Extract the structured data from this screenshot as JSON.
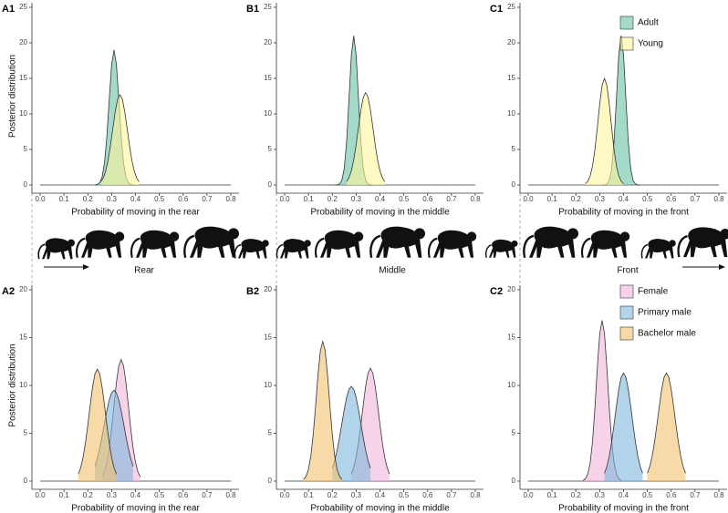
{
  "chart_data": [
    {
      "type": "density",
      "title": "A1",
      "xlabel": "Probability of moving in the rear",
      "ylabel": "Posterior distribution",
      "xlim": [
        0,
        0.8
      ],
      "xticks": [
        {
          "value": 0,
          "label": "0.0"
        },
        0.1,
        0.2,
        0.3,
        0.4,
        0.5,
        0.6,
        0.7,
        0.8
      ],
      "ylim": [
        0,
        25
      ],
      "yticks": [
        0,
        5,
        10,
        15,
        20,
        25
      ],
      "series": [
        {
          "name": "Adult",
          "color": "#66c2a5",
          "x": [
            0.23,
            0.24,
            0.25,
            0.26,
            0.27,
            0.28,
            0.29,
            0.3,
            0.31,
            0.32,
            0.33,
            0.34,
            0.35,
            0.36,
            0.37,
            0.38,
            0.39
          ],
          "values": [
            0.01,
            0.08,
            0.32,
            1.12,
            3.1,
            6.84,
            12.07,
            16.97,
            19,
            16.97,
            12.07,
            6.84,
            3.1,
            1.12,
            0.32,
            0.08,
            0.01
          ]
        },
        {
          "name": "Young",
          "color": "#fff59d",
          "x": [
            0.255,
            0.265,
            0.275,
            0.285,
            0.295,
            0.305,
            0.315,
            0.325,
            0.335,
            0.345,
            0.355,
            0.365,
            0.375,
            0.385,
            0.395,
            0.405,
            0.415
          ],
          "values": [
            0.46,
            0.99,
            1.96,
            3.45,
            5.52,
            7.95,
            10.31,
            12.05,
            12.7,
            12.05,
            10.31,
            7.95,
            5.52,
            3.45,
            1.96,
            0.99,
            0.46
          ]
        }
      ]
    },
    {
      "type": "density",
      "title": "B1",
      "xlabel": "Probability of moving in the middle",
      "xlim": [
        0,
        0.8
      ],
      "xticks": [
        {
          "value": 0,
          "label": "0.0"
        },
        0.1,
        0.2,
        0.3,
        0.4,
        0.5,
        0.6,
        0.7,
        0.8
      ],
      "ylim": [
        0,
        25
      ],
      "yticks": [
        0,
        5,
        10,
        15,
        20,
        25
      ],
      "series": [
        {
          "name": "Adult",
          "color": "#66c2a5",
          "x": [
            0.21,
            0.22,
            0.23,
            0.24,
            0.25,
            0.26,
            0.27,
            0.28,
            0.29,
            0.3,
            0.31,
            0.32,
            0.33,
            0.34,
            0.35,
            0.36,
            0.37
          ],
          "values": [
            0,
            0.02,
            0.14,
            0.65,
            2.29,
            6.03,
            12.08,
            18.29,
            21,
            18.29,
            12.08,
            6.03,
            2.29,
            0.65,
            0.14,
            0.02,
            0
          ]
        },
        {
          "name": "Young",
          "color": "#fff59d",
          "x": [
            0.26,
            0.27,
            0.28,
            0.29,
            0.3,
            0.31,
            0.32,
            0.33,
            0.34,
            0.35,
            0.36,
            0.37,
            0.38,
            0.39,
            0.4,
            0.41,
            0.42
          ],
          "values": [
            0.47,
            1.01,
            2,
            3.54,
            5.66,
            8.14,
            10.56,
            12.34,
            13,
            12.34,
            10.56,
            8.14,
            5.66,
            3.54,
            2,
            1.01,
            0.47
          ]
        }
      ]
    },
    {
      "type": "density",
      "title": "C1",
      "xlabel": "Probability of moving in the front",
      "legend": "top-right",
      "xlim": [
        0,
        0.8
      ],
      "xticks": [
        {
          "value": 0,
          "label": "0.0"
        },
        0.1,
        0.2,
        0.3,
        0.4,
        0.5,
        0.6,
        0.7,
        0.8
      ],
      "ylim": [
        0,
        25
      ],
      "yticks": [
        0,
        5,
        10,
        15,
        20,
        25
      ],
      "series": [
        {
          "name": "Adult",
          "color": "#66c2a5",
          "x": [
            0.31,
            0.32,
            0.33,
            0.34,
            0.35,
            0.36,
            0.37,
            0.38,
            0.39,
            0.4,
            0.41,
            0.42,
            0.43,
            0.44,
            0.45,
            0.46,
            0.47
          ],
          "values": [
            0,
            0.02,
            0.14,
            0.65,
            2.29,
            6.03,
            12.08,
            18.29,
            21,
            18.29,
            12.08,
            6.03,
            2.29,
            0.65,
            0.14,
            0.02,
            0
          ]
        },
        {
          "name": "Young",
          "color": "#fff59d",
          "x": [
            0.24,
            0.25,
            0.26,
            0.27,
            0.28,
            0.29,
            0.3,
            0.31,
            0.32,
            0.33,
            0.34,
            0.35,
            0.36,
            0.37,
            0.38,
            0.39,
            0.4
          ],
          "values": [
            0.18,
            0.53,
            1.28,
            2.7,
            5.01,
            8.09,
            11.4,
            14.01,
            15,
            14.01,
            11.4,
            8.09,
            5.01,
            2.7,
            1.28,
            0.53,
            0.18
          ]
        }
      ]
    },
    {
      "type": "density",
      "title": "A2",
      "xlabel": "Probability of moving in the rear",
      "ylabel": "Posterior distribution",
      "xlim": [
        0,
        0.8
      ],
      "xticks": [
        {
          "value": 0,
          "label": "0.0"
        },
        0.1,
        0.2,
        0.3,
        0.4,
        0.5,
        0.6,
        0.7,
        0.8
      ],
      "ylim": [
        0,
        20
      ],
      "yticks": [
        0,
        5,
        10,
        15,
        20
      ],
      "series": [
        {
          "name": "Female",
          "color": "#f1b6da",
          "x": [
            0.26,
            0.27,
            0.28,
            0.29,
            0.3,
            0.31,
            0.32,
            0.33,
            0.34,
            0.35,
            0.36,
            0.37,
            0.38,
            0.39,
            0.4,
            0.41,
            0.42
          ],
          "values": [
            0.46,
            0.99,
            1.96,
            3.45,
            5.52,
            7.95,
            10.31,
            12.05,
            12.7,
            12.05,
            10.31,
            7.95,
            5.52,
            3.45,
            1.96,
            0.99,
            0.46
          ]
        },
        {
          "name": "Primary male",
          "color": "#7fb8dc",
          "x": [
            0.23,
            0.24,
            0.25,
            0.26,
            0.27,
            0.28,
            0.29,
            0.3,
            0.31,
            0.32,
            0.33,
            0.34,
            0.35,
            0.36,
            0.37,
            0.38,
            0.39
          ],
          "values": [
            1.55,
            2.37,
            3.43,
            4.67,
            6.04,
            7.36,
            8.48,
            9.23,
            9.5,
            9.23,
            8.48,
            7.36,
            6.04,
            4.67,
            3.43,
            2.37,
            1.55
          ]
        },
        {
          "name": "Bachelor male",
          "color": "#f3c16f",
          "x": [
            0.16,
            0.17,
            0.18,
            0.19,
            0.2,
            0.21,
            0.22,
            0.23,
            0.24,
            0.25,
            0.26,
            0.27,
            0.28,
            0.29,
            0.3,
            0.31,
            0.32
          ],
          "values": [
            0.74,
            1.4,
            2.46,
            3.97,
            5.85,
            7.92,
            9.84,
            11.21,
            11.7,
            11.21,
            9.84,
            7.92,
            5.85,
            3.97,
            2.46,
            1.4,
            0.74
          ]
        }
      ]
    },
    {
      "type": "density",
      "title": "B2",
      "xlabel": "Probability of moving in the middle",
      "xlim": [
        0,
        0.8
      ],
      "xticks": [
        {
          "value": 0,
          "label": "0.0"
        },
        0.1,
        0.2,
        0.3,
        0.4,
        0.5,
        0.6,
        0.7,
        0.8
      ],
      "ylim": [
        0,
        20
      ],
      "yticks": [
        0,
        5,
        10,
        15,
        20
      ],
      "series": [
        {
          "name": "Female",
          "color": "#f1b6da",
          "x": [
            0.28,
            0.29,
            0.3,
            0.31,
            0.32,
            0.33,
            0.34,
            0.35,
            0.36,
            0.37,
            0.38,
            0.39,
            0.4,
            0.41,
            0.42,
            0.43,
            0.44
          ],
          "values": [
            0.74,
            1.42,
            2.48,
            4,
            5.9,
            7.99,
            9.92,
            11.3,
            11.8,
            11.3,
            9.92,
            7.99,
            5.9,
            4,
            2.48,
            1.42,
            0.74
          ]
        },
        {
          "name": "Primary male",
          "color": "#7fb8dc",
          "x": [
            0.2,
            0.21,
            0.22,
            0.23,
            0.24,
            0.25,
            0.26,
            0.27,
            0.28,
            0.29,
            0.3,
            0.31,
            0.32,
            0.33,
            0.34,
            0.35,
            0.36
          ],
          "values": [
            1.34,
            2.14,
            3.22,
            4.53,
            6.01,
            7.47,
            8.73,
            9.59,
            9.9,
            9.59,
            8.73,
            7.47,
            6.01,
            4.53,
            3.22,
            2.14,
            1.34
          ]
        },
        {
          "name": "Bachelor male",
          "color": "#f3c16f",
          "x": [
            0.08,
            0.09,
            0.1,
            0.11,
            0.12,
            0.13,
            0.14,
            0.15,
            0.16,
            0.17,
            0.18,
            0.19,
            0.2,
            0.21,
            0.22,
            0.23,
            0.24
          ],
          "values": [
            0.18,
            0.51,
            1.24,
            2.63,
            4.88,
            7.87,
            11.1,
            13.64,
            14.6,
            13.64,
            11.1,
            7.87,
            4.88,
            2.63,
            1.24,
            0.51,
            0.18
          ]
        }
      ]
    },
    {
      "type": "density",
      "title": "C2",
      "xlabel": "Probability of moving in the front",
      "legend": "top-right",
      "xlim": [
        0,
        0.8
      ],
      "xticks": [
        {
          "value": 0,
          "label": "0.0"
        },
        0.1,
        0.2,
        0.3,
        0.4,
        0.5,
        0.6,
        0.7,
        0.8
      ],
      "ylim": [
        0,
        20
      ],
      "yticks": [
        0,
        5,
        10,
        15,
        20
      ],
      "series": [
        {
          "name": "Female",
          "color": "#f1b6da",
          "x": [
            0.23,
            0.24,
            0.25,
            0.26,
            0.27,
            0.28,
            0.29,
            0.3,
            0.31,
            0.32,
            0.33,
            0.34,
            0.35,
            0.36,
            0.37,
            0.38,
            0.39
          ],
          "values": [
            0.07,
            0.24,
            0.74,
            1.92,
            4.18,
            7.69,
            11.88,
            15.41,
            16.8,
            15.41,
            11.88,
            7.69,
            4.18,
            1.92,
            0.74,
            0.24,
            0.07
          ]
        },
        {
          "name": "Primary male",
          "color": "#7fb8dc",
          "x": [
            0.32,
            0.33,
            0.34,
            0.35,
            0.36,
            0.37,
            0.38,
            0.39,
            0.4,
            0.41,
            0.42,
            0.43,
            0.44,
            0.45,
            0.46,
            0.47,
            0.48
          ],
          "values": [
            0.82,
            1.53,
            2.6,
            4.08,
            5.89,
            7.82,
            9.59,
            10.85,
            11.3,
            10.85,
            9.59,
            7.82,
            5.89,
            4.08,
            2.6,
            1.53,
            0.82
          ]
        },
        {
          "name": "Bachelor male",
          "color": "#f3c16f",
          "x": [
            0.5,
            0.51,
            0.52,
            0.53,
            0.54,
            0.55,
            0.56,
            0.57,
            0.58,
            0.59,
            0.6,
            0.61,
            0.62,
            0.63,
            0.64,
            0.65,
            0.66
          ],
          "values": [
            0.82,
            1.53,
            2.6,
            4.08,
            5.89,
            7.82,
            9.59,
            10.85,
            11.3,
            10.85,
            9.59,
            7.82,
            5.89,
            4.08,
            2.6,
            1.53,
            0.82
          ]
        }
      ]
    }
  ],
  "strip": {
    "labels": [
      "Rear",
      "Middle",
      "Front"
    ]
  }
}
